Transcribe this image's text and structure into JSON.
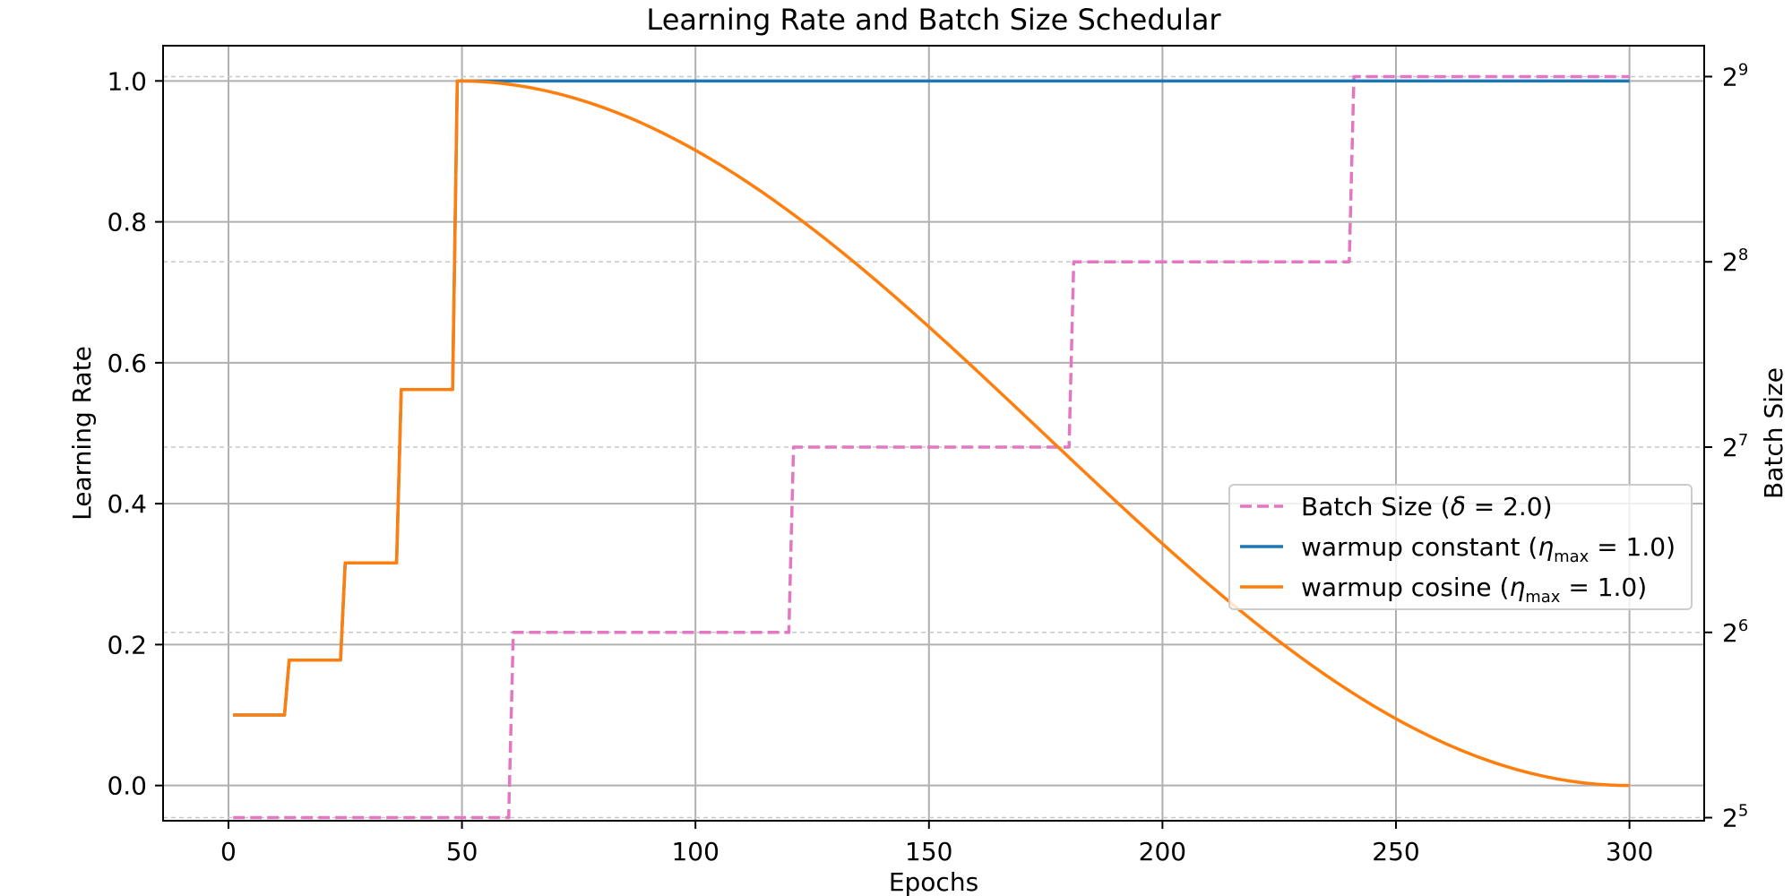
{
  "chart_data": {
    "type": "line",
    "title": "Learning Rate and Batch Size Schedular",
    "xlabel": "Epochs",
    "ylabel": "Learning Rate",
    "y2label": "Batch Size",
    "xlim": [
      -14,
      316
    ],
    "ylim": [
      -0.05,
      1.05
    ],
    "y2_scale": "log2",
    "y2lim_exponent": [
      4.9833,
      9.1667
    ],
    "xticks": [
      0,
      50,
      100,
      150,
      200,
      250,
      300
    ],
    "yticks": [
      0.0,
      0.2,
      0.4,
      0.6,
      0.8,
      1.0
    ],
    "ytick_labels": [
      "0.0",
      "0.2",
      "0.4",
      "0.6",
      "0.8",
      "1.0"
    ],
    "y2tick_base": "2",
    "y2tick_exponents": [
      "5",
      "6",
      "7",
      "8",
      "9"
    ],
    "grid": true,
    "legend_position": "center-right",
    "series": [
      {
        "name": "Batch Size (δ = 2.0)",
        "legend_main": "Batch Size (",
        "legend_var": "δ",
        "legend_tail": " = 2.0)",
        "axis": "right",
        "style": "dashed",
        "color": "#e377c2",
        "steps": [
          {
            "x_start": 1,
            "x_end": 60,
            "value": 32
          },
          {
            "x_start": 61,
            "x_end": 120,
            "value": 64
          },
          {
            "x_start": 121,
            "x_end": 180,
            "value": 128
          },
          {
            "x_start": 181,
            "x_end": 240,
            "value": 256
          },
          {
            "x_start": 241,
            "x_end": 300,
            "value": 512
          }
        ]
      },
      {
        "name": "warmup constant (η_max = 1.0)",
        "legend_main": "warmup constant (",
        "legend_var": "η",
        "legend_sub": "max",
        "legend_tail": " = 1.0)",
        "axis": "left",
        "style": "solid",
        "color": "#1f77b4",
        "warmup_steps": [
          {
            "x_start": 1,
            "x_end": 12,
            "value": 0.1
          },
          {
            "x_start": 13,
            "x_end": 24,
            "value": 0.178
          },
          {
            "x_start": 25,
            "x_end": 36,
            "value": 0.316
          },
          {
            "x_start": 37,
            "x_end": 48,
            "value": 0.562
          }
        ],
        "peak": {
          "x_start": 49,
          "x_end": 300,
          "value": 1.0
        }
      },
      {
        "name": "warmup cosine (η_max = 1.0)",
        "legend_main": "warmup cosine (",
        "legend_var": "η",
        "legend_sub": "max",
        "legend_tail": " = 1.0)",
        "axis": "left",
        "style": "solid",
        "color": "#ff7f0e",
        "warmup_steps": [
          {
            "x_start": 1,
            "x_end": 12,
            "value": 0.1
          },
          {
            "x_start": 13,
            "x_end": 24,
            "value": 0.178
          },
          {
            "x_start": 25,
            "x_end": 36,
            "value": 0.316
          },
          {
            "x_start": 37,
            "x_end": 48,
            "value": 0.562
          }
        ],
        "cosine": {
          "x_start": 49,
          "x_end": 300,
          "from": 1.0,
          "to": 0.0
        }
      }
    ]
  }
}
